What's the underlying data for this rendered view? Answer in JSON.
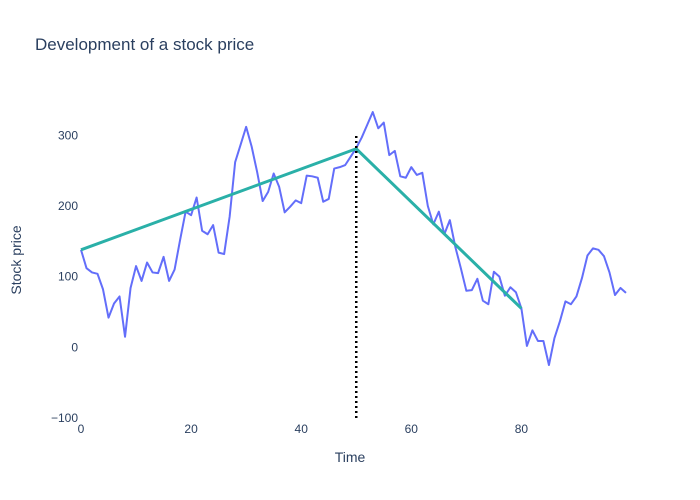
{
  "chart_data": {
    "type": "line",
    "title": "Development of a stock price",
    "xlabel": "Time",
    "ylabel": "Stock price",
    "xlim": [
      0,
      99
    ],
    "ylim": [
      -100,
      350
    ],
    "x_ticks": [
      0,
      20,
      40,
      60,
      80
    ],
    "y_ticks": [
      -100,
      0,
      100,
      200,
      300
    ],
    "y_tick_labels": [
      "−100",
      "0",
      "100",
      "200",
      "300"
    ],
    "grid": false,
    "legend": "none",
    "series": [
      {
        "color": "#636efa",
        "x": [
          0,
          1,
          2,
          3,
          4,
          5,
          6,
          7,
          8,
          9,
          10,
          11,
          12,
          13,
          14,
          15,
          16,
          17,
          18,
          19,
          20,
          21,
          22,
          23,
          24,
          25,
          26,
          27,
          28,
          29,
          30,
          31,
          32,
          33,
          34,
          35,
          36,
          37,
          38,
          39,
          40,
          41,
          42,
          43,
          44,
          45,
          46,
          47,
          48,
          49,
          50,
          51,
          52,
          53,
          54,
          55,
          56,
          57,
          58,
          59,
          60,
          61,
          62,
          63,
          64,
          65,
          66,
          67,
          68,
          69,
          70,
          71,
          72,
          73,
          74,
          75,
          76,
          77,
          78,
          79,
          80,
          81,
          82,
          83,
          84,
          85,
          86,
          87,
          88,
          89,
          90,
          91,
          92,
          93,
          94,
          95,
          96,
          97,
          98,
          99
        ],
        "y": [
          138,
          112,
          106,
          104,
          82,
          42,
          62,
          72,
          15,
          84,
          115,
          94,
          120,
          106,
          105,
          128,
          94,
          110,
          152,
          192,
          187,
          212,
          165,
          160,
          173,
          134,
          132,
          185,
          262,
          287,
          312,
          284,
          248,
          207,
          220,
          246,
          227,
          191,
          199,
          208,
          204,
          243,
          242,
          240,
          206,
          210,
          253,
          255,
          258,
          270,
          282,
          297,
          315,
          333,
          310,
          318,
          272,
          278,
          242,
          240,
          255,
          244,
          247,
          200,
          174,
          192,
          160,
          180,
          142,
          112,
          80,
          81,
          97,
          66,
          61,
          107,
          100,
          73,
          85,
          78,
          55,
          2,
          24,
          9,
          9,
          -25,
          13,
          37,
          65,
          61,
          72,
          98,
          130,
          140,
          138,
          129,
          106,
          74,
          84,
          77
        ]
      },
      {
        "color": "#2ab0a8",
        "x": [
          0,
          50,
          80
        ],
        "y": [
          138,
          281,
          55
        ]
      }
    ],
    "vline": {
      "x": 50,
      "y_range": [
        -100,
        300
      ],
      "color": "#000000",
      "style": "dotted"
    }
  }
}
